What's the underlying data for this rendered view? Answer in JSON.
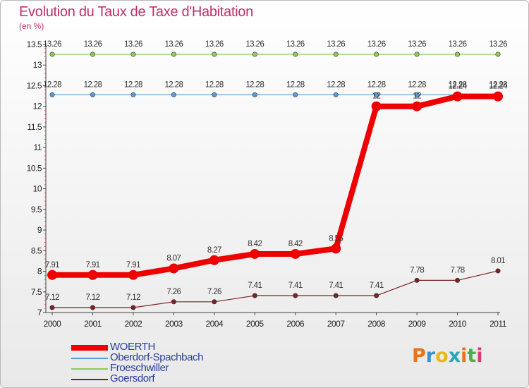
{
  "header": {
    "title": "Evolution du Taux de Taxe d'Habitation",
    "unit": "(en %)"
  },
  "brand": {
    "logo_letters": [
      "P",
      "r",
      "o",
      "x",
      "i",
      "t",
      "i"
    ],
    "logo_colors": [
      "#e8731a",
      "#3a8fd0",
      "#e8b81a",
      "#2aa6b8",
      "#e8731a",
      "#4bb04b",
      "#d83a7a"
    ]
  },
  "chart_data": {
    "type": "line",
    "x": [
      "2000",
      "2001",
      "2002",
      "2003",
      "2004",
      "2005",
      "2006",
      "2007",
      "2008",
      "2009",
      "2010",
      "2011"
    ],
    "ylim": [
      7,
      13.5
    ],
    "y_ticks": [
      "7",
      "7.5",
      "8",
      "8.5",
      "9",
      "9.5",
      "10",
      "10.5",
      "11",
      "11.5",
      "12",
      "12.5",
      "13",
      "13.5"
    ],
    "grid": false,
    "legend_position": "bottom-left",
    "series": [
      {
        "name": "WOERTH",
        "color": "#ee0000",
        "values": [
          7.91,
          7.91,
          7.91,
          8.07,
          8.27,
          8.42,
          8.42,
          8.55,
          12,
          12,
          12.24,
          12.24
        ],
        "labels": [
          "7.91",
          "7.91",
          "7.91",
          "8.07",
          "8.27",
          "8.42",
          "8.42",
          "8.55",
          "12",
          "12",
          "12.24",
          "12.24"
        ]
      },
      {
        "name": "Oberdorf-Spachbach",
        "color": "#5b9bd5",
        "values": [
          12.28,
          12.28,
          12.28,
          12.28,
          12.28,
          12.28,
          12.28,
          12.28,
          12.28,
          12.28,
          12.28,
          12.28
        ],
        "labels": [
          "12.28",
          "12.28",
          "12.28",
          "12.28",
          "12.28",
          "12.28",
          "12.28",
          "12.28",
          "12.28",
          "12.28",
          "12.28",
          "12.28"
        ]
      },
      {
        "name": "Froeschwiller",
        "color": "#8fcc55",
        "values": [
          13.26,
          13.26,
          13.26,
          13.26,
          13.26,
          13.26,
          13.26,
          13.26,
          13.26,
          13.26,
          13.26,
          13.26
        ],
        "labels": [
          "13.26",
          "13.26",
          "13.26",
          "13.26",
          "13.26",
          "13.26",
          "13.26",
          "13.26",
          "13.26",
          "13.26",
          "13.26",
          "13.26"
        ]
      },
      {
        "name": "Goersdorf",
        "color": "#7a2323",
        "values": [
          7.12,
          7.12,
          7.12,
          7.26,
          7.26,
          7.41,
          7.41,
          7.41,
          7.41,
          7.78,
          7.78,
          8.01
        ],
        "labels": [
          "7.12",
          "7.12",
          "7.12",
          "7.26",
          "7.26",
          "7.41",
          "7.41",
          "7.41",
          "7.41",
          "7.78",
          "7.78",
          "8.01"
        ]
      }
    ]
  }
}
